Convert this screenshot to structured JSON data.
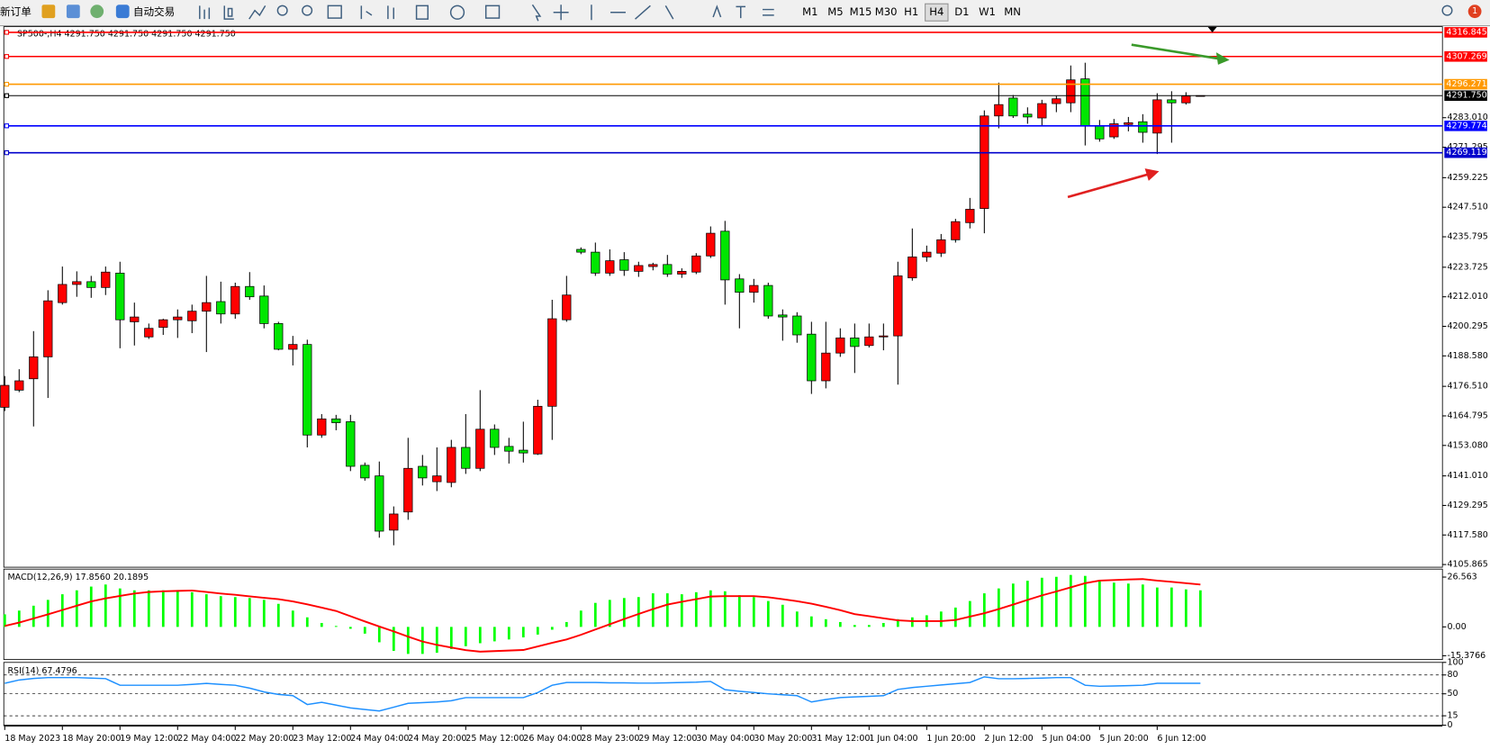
{
  "toolbar": {
    "new_order": "新订单",
    "auto_trading": "自动交易",
    "periods": [
      "M1",
      "M5",
      "M15",
      "M30",
      "H1",
      "H4",
      "D1",
      "W1",
      "MN"
    ],
    "active_period": "H4",
    "notification": "1"
  },
  "chart_data": [
    {
      "type": "candlestick",
      "title": "SP500-,H4 4291.750 4291.750 4291.750 4291.750",
      "categories": [
        "18 May 2023",
        null,
        null,
        null,
        "18 May 20:00",
        null,
        null,
        null,
        "19 May 12:00",
        null,
        null,
        null,
        "22 May 04:00",
        null,
        null,
        null,
        "22 May 20:00",
        null,
        null,
        null,
        "23 May 12:00",
        null,
        null,
        null,
        "24 May 04:00",
        null,
        null,
        null,
        "24 May 20:00",
        null,
        null,
        null,
        "25 May 12:00",
        null,
        null,
        null,
        "26 May 04:00",
        null,
        null,
        null,
        "28 May 23:00",
        null,
        null,
        null,
        "29 May 12:00",
        null,
        null,
        null,
        "30 May 04:00",
        null,
        null,
        null,
        "30 May 20:00",
        null,
        null,
        null,
        "31 May 12:00",
        null,
        null,
        null,
        "1 Jun 04:00",
        null,
        null,
        null,
        "1 Jun 20:00",
        null,
        null,
        null,
        "2 Jun 12:00",
        null,
        null,
        null,
        "5 Jun 04:00",
        null,
        null,
        null,
        "5 Jun 20:00",
        null,
        null,
        null,
        "6 Jun 12:00",
        null,
        null,
        null
      ],
      "open": [
        4168.2,
        4175.0,
        4179.5,
        4188.2,
        4209.7,
        4216.9,
        4218.0,
        4215.7,
        4221.4,
        4202.1,
        4196.1,
        4199.9,
        4202.9,
        4202.5,
        4206.3,
        4210.1,
        4205.2,
        4216.1,
        4212.3,
        4201.4,
        4191.2,
        4193.1,
        4157.2,
        4163.6,
        4162.5,
        4145.2,
        4141.0,
        4119.5,
        4126.7,
        4144.8,
        4138.7,
        4138.4,
        4152.3,
        4144.0,
        4159.5,
        4152.7,
        4151.2,
        4149.7,
        4168.6,
        4202.9,
        4230.8,
        4229.7,
        4221.4,
        4226.7,
        4222.1,
        4224.0,
        4224.8,
        4221.0,
        4221.8,
        4228.2,
        4238.0,
        4219.1,
        4213.8,
        4216.5,
        4204.8,
        4204.4,
        4197.2,
        4178.7,
        4189.7,
        4195.7,
        4192.7,
        4196.1,
        4196.5,
        4219.5,
        4227.8,
        4229.3,
        4234.6,
        4241.4,
        4247.0,
        4283.7,
        4290.8,
        4284.4,
        4282.9,
        4288.6,
        4288.9,
        4298.4,
        4279.9,
        4275.4,
        4280.3,
        4281.4,
        4276.9,
        4290.1,
        4288.9,
        4291.75
      ],
      "high": [
        4180.6,
        4183.3,
        4198.4,
        4214.6,
        4224.0,
        4222.1,
        4220.3,
        4224.0,
        4225.9,
        4209.7,
        4201.4,
        4203.3,
        4207.0,
        4208.9,
        4220.3,
        4218.0,
        4217.6,
        4221.8,
        4216.5,
        4202.1,
        4196.5,
        4195.0,
        4165.5,
        4165.2,
        4165.2,
        4146.3,
        4146.7,
        4128.9,
        4156.1,
        4149.3,
        4152.3,
        4155.3,
        4165.5,
        4175.0,
        4161.4,
        4156.1,
        4162.5,
        4171.2,
        4210.8,
        4220.3,
        4231.6,
        4233.5,
        4230.8,
        4229.7,
        4225.9,
        4225.5,
        4228.6,
        4223.3,
        4229.3,
        4239.9,
        4242.1,
        4221.0,
        4219.1,
        4217.6,
        4207.0,
        4205.9,
        4202.1,
        4202.1,
        4199.5,
        4201.4,
        4201.4,
        4201.4,
        4225.9,
        4239.1,
        4232.3,
        4236.9,
        4242.9,
        4251.2,
        4285.9,
        4296.9,
        4292.0,
        4287.1,
        4290.1,
        4291.6,
        4303.7,
        4304.8,
        4282.1,
        4282.5,
        4283.3,
        4284.4,
        4292.7,
        4293.5,
        4293.1,
        4291.75
      ],
      "low": [
        4166.7,
        4174.2,
        4160.6,
        4171.9,
        4208.9,
        4212.0,
        4211.6,
        4212.7,
        4191.6,
        4192.7,
        4195.3,
        4196.9,
        4195.7,
        4197.6,
        4190.1,
        4201.4,
        4203.3,
        4210.8,
        4199.5,
        4190.8,
        4184.8,
        4152.3,
        4156.1,
        4159.1,
        4142.9,
        4139.1,
        4116.5,
        4113.5,
        4123.6,
        4137.2,
        4135.0,
        4136.5,
        4141.8,
        4142.9,
        4149.3,
        4145.9,
        4146.3,
        4149.3,
        4155.3,
        4202.1,
        4228.9,
        4220.3,
        4220.3,
        4220.3,
        4219.9,
        4222.5,
        4219.9,
        4219.5,
        4221.0,
        4227.4,
        4208.9,
        4199.5,
        4209.7,
        4203.3,
        4194.6,
        4193.8,
        4173.5,
        4175.7,
        4188.2,
        4181.8,
        4191.9,
        4190.8,
        4177.2,
        4218.4,
        4225.9,
        4227.8,
        4233.5,
        4239.1,
        4237.2,
        4278.8,
        4282.9,
        4280.6,
        4279.9,
        4285.2,
        4285.2,
        4272.0,
        4273.5,
        4274.6,
        4277.6,
        4273.1,
        4268.6,
        4273.1,
        4288.2,
        4291.75
      ],
      "close": [
        4176.9,
        4178.7,
        4188.2,
        4210.4,
        4216.9,
        4218.0,
        4215.7,
        4221.8,
        4202.9,
        4204.0,
        4199.5,
        4202.9,
        4204.0,
        4206.3,
        4209.7,
        4205.2,
        4216.1,
        4212.0,
        4201.4,
        4191.2,
        4193.1,
        4157.2,
        4163.6,
        4162.1,
        4144.8,
        4140.2,
        4119.1,
        4125.9,
        4144.0,
        4140.2,
        4141.0,
        4152.3,
        4144.0,
        4159.5,
        4152.3,
        4150.8,
        4150.1,
        4168.6,
        4203.3,
        4212.7,
        4229.7,
        4221.4,
        4226.3,
        4222.5,
        4224.4,
        4224.8,
        4221.0,
        4222.1,
        4228.2,
        4237.2,
        4218.7,
        4213.8,
        4216.5,
        4204.4,
        4204.0,
        4196.9,
        4178.7,
        4189.7,
        4195.7,
        4192.3,
        4196.1,
        4196.5,
        4220.3,
        4227.8,
        4229.7,
        4234.6,
        4241.8,
        4246.7,
        4283.7,
        4288.2,
        4283.7,
        4283.3,
        4288.6,
        4290.5,
        4298.0,
        4279.9,
        4274.6,
        4280.6,
        4281.0,
        4277.2,
        4290.1,
        4288.9,
        4291.6,
        4291.75
      ],
      "up_color": "#ff0000",
      "down_color": "#00e600",
      "ylim": [
        4104.8,
        4319.1
      ],
      "yticks": [
        4105.865,
        {
          "value": 4117.58,
          "label": "4117.580"
        },
        4129.295,
        {
          "value": 4141.01,
          "label": "4141.010"
        },
        {
          "value": 4153.08,
          "label": "4153.080"
        },
        4164.795,
        {
          "value": 4176.51,
          "label": "4176.510"
        },
        {
          "value": 4188.58,
          "label": "4188.580"
        },
        4200.295,
        {
          "value": 4212.01,
          "label": "4212.010"
        },
        4223.725,
        4235.795,
        {
          "value": 4247.51,
          "label": "4247.510"
        },
        4259.225,
        4271.295,
        {
          "value": 4283.01,
          "label": "4283.010"
        }
      ],
      "levels": [
        {
          "value": 4316.845,
          "color": "#ff0000"
        },
        {
          "value": 4307.269,
          "color": "#ff0000"
        },
        {
          "value": 4296.271,
          "color": "#ff9900"
        },
        {
          "value": 4291.75,
          "label": "4291.750",
          "color": "#000000"
        },
        {
          "value": 4279.774,
          "color": "#0000ff"
        },
        {
          "value": 4269.119,
          "color": "#0000cc"
        }
      ]
    },
    {
      "type": "macd",
      "title": "MACD(12,26,9) 17.8560 20.1895",
      "series": [
        {
          "color": "#00ff00",
          "values": [
            6.7,
            8.7,
            11.3,
            14.4,
            17.4,
            19.5,
            21.5,
            22.6,
            20.5,
            19.5,
            19.5,
            19.5,
            19.0,
            18.5,
            17.4,
            16.4,
            15.9,
            15.4,
            14.4,
            12.3,
            8.7,
            5.1,
            2.1,
            0.5,
            -1.0,
            -3.6,
            -8.2,
            -12.8,
            -14.4,
            -14.4,
            -13.8,
            -11.8,
            -10.3,
            -8.7,
            -7.7,
            -6.7,
            -5.6,
            -4.1,
            -1.5,
            2.6,
            8.7,
            12.8,
            14.4,
            15.4,
            15.9,
            17.9,
            17.9,
            17.4,
            18.5,
            19.5,
            19.0,
            16.9,
            15.9,
            13.8,
            11.8,
            8.2,
            5.6,
            4.1,
            2.6,
            1.0,
            1.0,
            2.1,
            4.1,
            5.1,
            6.2,
            8.2,
            10.3,
            13.8,
            17.9,
            20.5,
            23.1,
            24.6,
            26.2,
            26.7,
            27.7,
            27.2,
            24.6,
            23.6,
            23.1,
            22.6,
            21.0,
            21.0,
            20.0,
            19.5
          ]
        },
        {
          "color": "#ff0000",
          "values": [
            0.5,
            2.3,
            4.5,
            6.7,
            9.0,
            11.3,
            13.6,
            15.2,
            16.5,
            17.8,
            18.6,
            19.0,
            19.2,
            19.4,
            18.6,
            17.8,
            17.1,
            16.3,
            15.5,
            14.8,
            13.6,
            12.0,
            10.3,
            8.5,
            5.7,
            2.9,
            0.2,
            -2.4,
            -5.2,
            -7.8,
            -9.6,
            -11.0,
            -12.4,
            -13.2,
            -12.9,
            -12.6,
            -12.3,
            -10.4,
            -8.5,
            -6.7,
            -4.2,
            -1.4,
            1.4,
            4.2,
            6.9,
            9.5,
            11.9,
            13.4,
            14.8,
            16.2,
            16.4,
            16.4,
            16.4,
            15.8,
            14.8,
            13.7,
            12.4,
            10.7,
            8.9,
            6.8,
            5.7,
            4.6,
            3.5,
            3.1,
            3.1,
            3.1,
            3.7,
            5.5,
            7.3,
            9.5,
            11.9,
            14.4,
            16.8,
            18.9,
            21.1,
            23.3,
            24.7,
            25.0,
            25.3,
            25.5,
            24.7,
            24.0,
            23.3,
            22.6
          ]
        }
      ],
      "ylim": [
        -17.4,
        30.8
      ],
      "yticks": [
        26.563,
        {
          "value": 0,
          "label": "0.00"
        },
        -15.3766
      ]
    },
    {
      "type": "rsi",
      "title": "RSI(14) 67.4796",
      "color": "#1e90ff",
      "values": [
        66.7,
        72,
        74.5,
        75.8,
        75.8,
        75.8,
        75,
        74.2,
        63.6,
        63.6,
        63.6,
        63.6,
        63.6,
        65,
        66.5,
        65,
        63.6,
        59,
        53,
        49,
        47,
        33,
        36.4,
        32,
        27.5,
        25,
        22.7,
        28.7,
        34.8,
        36,
        37,
        39,
        43.9,
        43.9,
        43.9,
        43.9,
        43.9,
        52,
        63.6,
        68,
        68,
        68,
        67.5,
        67.5,
        67,
        67,
        67.5,
        68,
        68.5,
        69.7,
        56.5,
        54,
        52,
        50,
        48.5,
        47,
        37,
        41,
        44,
        45,
        46,
        47,
        57,
        60,
        62,
        64,
        66,
        68,
        77,
        74,
        74,
        74.5,
        75,
        75.8,
        75.8,
        63.6,
        62,
        62.5,
        63,
        63.6,
        66.7,
        66.7,
        66.7,
        66.7
      ],
      "ylim": [
        0,
        100
      ],
      "yticks": [
        100,
        80,
        50,
        15,
        0
      ],
      "levels": [
        80,
        50,
        15
      ]
    }
  ]
}
